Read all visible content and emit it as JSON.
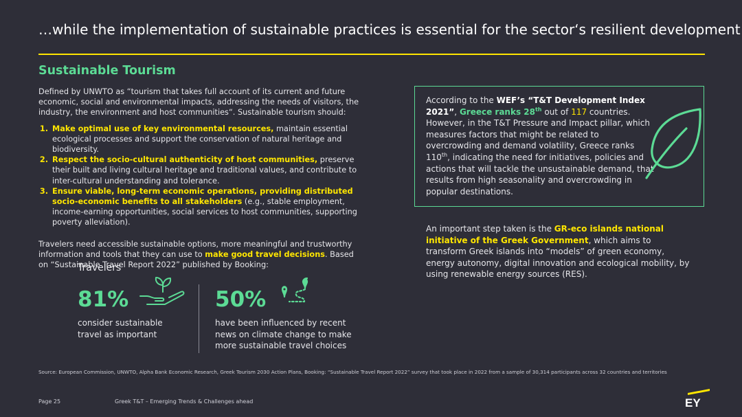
{
  "header": {
    "title": "…while the implementation of sustainable practices is essential for the sector‘s resilient development"
  },
  "section": {
    "title": "Sustainable Tourism"
  },
  "intro": {
    "text": "Defined by UNWTO as “tourism that takes full account of its current and future economic, social and environmental impacts, addressing the needs of visitors, the industry, the environment and host communities“. Sustainable tourism should:"
  },
  "list": [
    {
      "highlight": "Make optimal use of key environmental resources,",
      "rest": " maintain essential ecological processes and support the conservation of natural heritage and biodiversity."
    },
    {
      "highlight": "Respect the socio-cultural authenticity of host communities,",
      "rest": " preserve their built and living cultural heritage and traditional values, and contribute to inter-cultural understanding and tolerance."
    },
    {
      "highlight": "Ensure viable, long-term economic operations, providing distributed socio-economic benefits to all stakeholders",
      "rest": " (e.g., stable employment, income-earning opportunities, social services to host communities, supporting poverty alleviation)."
    }
  ],
  "travelers_para": {
    "before": "Travelers need accessible sustainable options, more meaningful and trustworthy information and tools that they can use to ",
    "highlight": "make good travel decisions",
    "after": ". Based on “Sustainable Travel Report 2022” published by Booking:"
  },
  "stats": {
    "label": "Travelers",
    "stat1": {
      "value": "81%",
      "text": "consider sustainable travel as important"
    },
    "stat2": {
      "value": "50%",
      "text": "have been influenced by recent news on climate change to make more sustainable travel choices"
    }
  },
  "box": {
    "p1": "According to the ",
    "wef": "WEF’s “T&T Development Index 2021”",
    "p2": ", ",
    "greece": "Greece ranks 28",
    "greece_sup": "th",
    "p3": " out of ",
    "count": "117",
    "p4": " countries. However, in the T&T Pressure and Impact pillar, which measures factors that might be related to overcrowding and demand volatility, Greece ranks 110",
    "rank_sup": "th",
    "p5": ", indicating the need for initiatives, policies and actions that will tackle the unsustainable demand, that results from high seasonality and overcrowding in popular destinations."
  },
  "right_para": {
    "before": "An important step taken is the ",
    "highlight": "GR-eco islands national initiative of the Greek Government",
    "after": ", which aims to transform Greek islands into “models” of green economy, energy autonomy, digital innovation and ecological mobility, by using renewable energy sources (RES)."
  },
  "footer": {
    "source": "Source: European Commission, UNWTO, Alpha Bank Economic Research, Greek Tourism 2030 Action Plans, Booking: “Sustainable Travel Report 2022” survey that took place in 2022 from a sample of 30,314 participants across 32 countries and territories",
    "page": "Page 25",
    "doc_title": "Greek T&T – Emerging Trends & Challenges ahead",
    "logo": "EY"
  },
  "colors": {
    "background": "#2e2e38",
    "accent_yellow": "#ffe600",
    "accent_green": "#5cdb95"
  }
}
